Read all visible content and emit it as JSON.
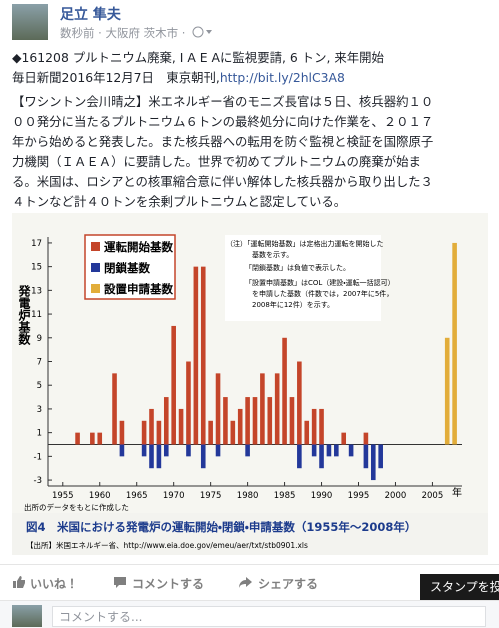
{
  "header": {
    "name": "足立 隼夫",
    "meta": "数秒前 · 大阪府 茨木市 ·"
  },
  "post": {
    "line1": "◆161208 プルトニウム廃棄, I A E Aに監視要請, 6 トン, 来年開始",
    "line2": "毎日新聞2016年12月7日　東京朝刊,",
    "link": "http://bit.ly/2hlC3A8",
    "body": [
      "【ワシントン会川晴之】米エネルギー省のモニズ長官は５日、核兵器約１０",
      "００発分に当たるプルトニウム６トンの最終処分に向けた作業を、２０１７",
      "年から始めると発表した。また核兵器への転用を防ぐ監視と検証を国際原子",
      "力機関（ＩＡＥＡ）に要請した。世界で初めてプルトニウムの廃棄が始ま",
      "る。米国は、ロシアとの核軍縮合意に伴い解体した核兵器から取り出した３",
      "４トンなど計４０トンを余剰プルトニウムと認定している。"
    ]
  },
  "chart_data": {
    "type": "bar",
    "ylabel": "発電炉基数",
    "xlabel": "年",
    "x": [
      1955,
      1956,
      1957,
      1958,
      1959,
      1960,
      1961,
      1962,
      1963,
      1964,
      1965,
      1966,
      1967,
      1968,
      1969,
      1970,
      1971,
      1972,
      1973,
      1974,
      1975,
      1976,
      1977,
      1978,
      1979,
      1980,
      1981,
      1982,
      1983,
      1984,
      1985,
      1986,
      1987,
      1988,
      1989,
      1990,
      1991,
      1992,
      1993,
      1994,
      1995,
      1996,
      1997,
      1998,
      1999,
      2000,
      2001,
      2002,
      2003,
      2004,
      2005,
      2006,
      2007,
      2008
    ],
    "series": [
      {
        "name": "運転開始基数",
        "color": "#c4452a",
        "values": [
          0,
          0,
          1,
          0,
          1,
          1,
          0,
          6,
          2,
          0,
          0,
          2,
          3,
          2,
          4,
          10,
          3,
          7,
          15,
          15,
          2,
          6,
          4,
          2,
          3,
          4,
          4,
          6,
          4,
          6,
          9,
          4,
          7,
          2,
          3,
          3,
          0,
          0,
          1,
          0,
          0,
          1,
          0,
          0,
          0,
          0,
          0,
          0,
          0,
          0,
          0,
          0,
          0,
          0
        ]
      },
      {
        "name": "閉鎖基数",
        "color": "#23389a",
        "values": [
          0,
          0,
          0,
          0,
          0,
          0,
          0,
          0,
          -1,
          0,
          0,
          -1,
          -2,
          -2,
          -1,
          0,
          0,
          -1,
          0,
          -2,
          0,
          -1,
          0,
          0,
          0,
          -1,
          0,
          0,
          0,
          0,
          0,
          0,
          -2,
          0,
          -1,
          -2,
          -1,
          -1,
          0,
          -1,
          0,
          -2,
          -3,
          -2,
          0,
          0,
          0,
          0,
          0,
          0,
          0,
          0,
          0,
          0
        ]
      },
      {
        "name": "設置申請基数",
        "color": "#e2ad3a",
        "values": [
          0,
          0,
          0,
          0,
          0,
          0,
          0,
          0,
          0,
          0,
          0,
          0,
          0,
          0,
          0,
          0,
          0,
          0,
          0,
          0,
          0,
          0,
          0,
          0,
          0,
          0,
          0,
          0,
          0,
          0,
          0,
          0,
          0,
          0,
          0,
          0,
          0,
          0,
          0,
          0,
          0,
          0,
          0,
          0,
          0,
          0,
          0,
          0,
          0,
          0,
          0,
          0,
          9,
          17
        ]
      }
    ],
    "xlim": [
      1953,
      2009
    ],
    "xticks": [
      1955,
      1960,
      1965,
      1970,
      1975,
      1980,
      1985,
      1990,
      1995,
      2000,
      2005
    ],
    "ylim": [
      -3.5,
      17.5
    ],
    "yticks": [
      -3,
      -1,
      1,
      3,
      5,
      7,
      9,
      11,
      13,
      15,
      17
    ],
    "grid": false,
    "notes": [
      "（注）「運転開始基数」は定格出力運転を開始した",
      "基数を示す。",
      "「閉鎖基数」は負値で表示した。",
      "「設置申請基数」はCOL（建設・運転一括認可）",
      "を申請した基数（件数では，2007年に5件，",
      "2008年に12件）を示す。"
    ],
    "credit": "出所のデータをもとに作成した",
    "caption": "図4　米国における発電炉の運転開始・閉鎖・申請基数（1955年〜2008年）",
    "source": "【出所】米国エネルギー省、http://www.eia.doe.gov/emeu/aer/txt/stb0901.xls"
  },
  "actions": {
    "like": "いいね！",
    "comment": "コメントする",
    "share": "シェアする",
    "tooltip": "スタンプを投"
  },
  "comment_box": {
    "placeholder": "コメントする..."
  }
}
